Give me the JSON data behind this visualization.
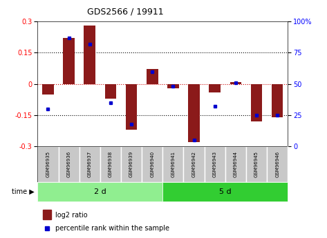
{
  "title": "GDS2566 / 19911",
  "samples": [
    "GSM96935",
    "GSM96936",
    "GSM96937",
    "GSM96938",
    "GSM96939",
    "GSM96940",
    "GSM96941",
    "GSM96942",
    "GSM96943",
    "GSM96944",
    "GSM96945",
    "GSM96946"
  ],
  "log2_ratio": [
    -0.05,
    0.22,
    0.28,
    -0.07,
    -0.22,
    0.07,
    -0.02,
    -0.28,
    -0.04,
    0.01,
    -0.18,
    -0.16
  ],
  "pct_rank": [
    30,
    87,
    82,
    35,
    18,
    60,
    48,
    5,
    32,
    51,
    25,
    25
  ],
  "group1_label": "2 d",
  "group2_label": "5 d",
  "ylim_left": [
    -0.3,
    0.3
  ],
  "ylim_right": [
    0,
    100
  ],
  "yticks_left": [
    -0.3,
    -0.15,
    0.0,
    0.15,
    0.3
  ],
  "yticks_right": [
    0,
    25,
    50,
    75,
    100
  ],
  "bar_color": "#8B1A1A",
  "dot_color": "#0000CD",
  "group_bg1": "#90EE90",
  "group_bg2": "#32CD32",
  "sample_bg": "#C8C8C8",
  "hline_color": "#CC0000",
  "dotted_color": "#000000",
  "legend_bar_label": "log2 ratio",
  "legend_dot_label": "percentile rank within the sample"
}
